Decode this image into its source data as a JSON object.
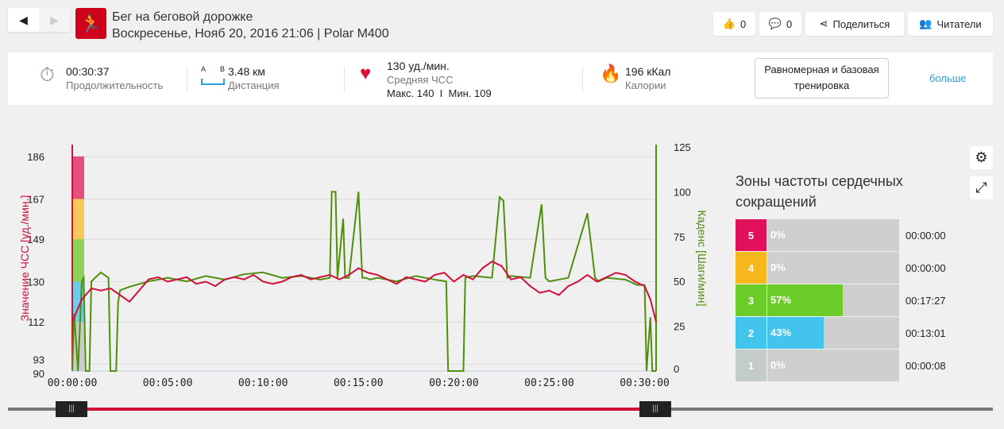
{
  "header": {
    "title": "Бег на беговой дорожке",
    "subtitle": "Воскресенье, Нояб 20, 2016 21:06 | Polar M400",
    "likes": "0",
    "comments": "0",
    "share": "Поделиться",
    "followers": "Читатели"
  },
  "summary": {
    "duration": "00:30:37",
    "duration_label": "Продолжительность",
    "dist_a": "A",
    "dist_b": "B",
    "distance": "3.48 км",
    "distance_label": "Дистанция",
    "hr": "130 уд./мин.",
    "hr_label": "Средняя ЧСС",
    "hr_minmax": "Макс. 140  I  Мин. 109",
    "calories": "196 кКал",
    "calories_label": "Калории",
    "training_type": "Равномерная и базовая тренировка",
    "more": "больше"
  },
  "zones": {
    "title": "Зоны частоты сердечных сокращений",
    "items": [
      {
        "zone": "5",
        "pct": "0%",
        "value": 0,
        "time": "00:00:00",
        "color": "#e0105a"
      },
      {
        "zone": "4",
        "pct": "0%",
        "value": 0,
        "time": "00:00:00",
        "color": "#f7b81e"
      },
      {
        "zone": "3",
        "pct": "57%",
        "value": 57,
        "time": "00:17:27",
        "color": "#6ccd2a"
      },
      {
        "zone": "2",
        "pct": "43%",
        "value": 43,
        "time": "00:13:01",
        "color": "#43c4ec"
      },
      {
        "zone": "1",
        "pct": "0%",
        "value": 0,
        "time": "00:00:08",
        "color": "#c3cbcb"
      }
    ]
  },
  "chart_data": {
    "type": "line",
    "ylabel": "Значение ЧСС [уд./мин.]",
    "y2label": "Каденс [Шаги/мин]",
    "yticks": [
      "186",
      "167",
      "149",
      "130",
      "112",
      "93",
      "90"
    ],
    "yvals": [
      186,
      167,
      149,
      130,
      112,
      93,
      90
    ],
    "ylim": [
      90,
      186
    ],
    "y2ticks": [
      "125",
      "100",
      "75",
      "50",
      "25",
      "0"
    ],
    "y2vals": [
      125,
      100,
      75,
      50,
      25,
      0
    ],
    "y2lim": [
      0,
      125
    ],
    "xticks": [
      "00:00:00",
      "00:05:00",
      "00:10:00",
      "00:15:00",
      "00:20:00",
      "00:25:00",
      "00:30:00"
    ],
    "xvals": [
      0,
      5,
      10,
      15,
      20,
      25,
      30
    ],
    "xlim": [
      0,
      30.6
    ],
    "hr_zones": [
      {
        "from": 90,
        "to": 112,
        "color": "#c8cccc"
      },
      {
        "from": 112,
        "to": 130,
        "color": "#6fcbe6"
      },
      {
        "from": 130,
        "to": 149,
        "color": "#8ed05c"
      },
      {
        "from": 149,
        "to": 167,
        "color": "#f7c85a"
      },
      {
        "from": 167,
        "to": 186,
        "color": "#e4507e"
      }
    ],
    "series": [
      {
        "name": "ЧСС",
        "color": "#d0103a",
        "x": [
          0,
          0.5,
          1,
          1.5,
          2,
          2.5,
          3,
          3.5,
          4,
          4.5,
          5,
          5.5,
          6,
          6.5,
          7,
          7.5,
          8,
          8.5,
          9,
          9.5,
          10,
          10.5,
          11,
          11.5,
          12,
          12.5,
          13,
          13.5,
          14,
          14.5,
          15,
          15.5,
          16,
          16.5,
          17,
          17.5,
          18,
          18.5,
          19,
          19.5,
          20,
          20.5,
          21,
          21.5,
          22,
          22.5,
          23,
          23.5,
          24,
          24.5,
          25,
          25.5,
          26,
          26.5,
          27,
          27.5,
          28,
          28.5,
          29,
          29.5,
          30,
          30.3,
          30.6
        ],
        "y": [
          112,
          122,
          127,
          126,
          127,
          124,
          121,
          126,
          131,
          132,
          130,
          131,
          132,
          129,
          130,
          128,
          131,
          132,
          131,
          133,
          130,
          129,
          130,
          132,
          133,
          131,
          132,
          133,
          131,
          133,
          136,
          134,
          133,
          131,
          129,
          132,
          131,
          130,
          133,
          134,
          130,
          133,
          131,
          136,
          139,
          137,
          131,
          132,
          128,
          125,
          126,
          124,
          128,
          130,
          133,
          130,
          132,
          134,
          133,
          130,
          128,
          122,
          112
        ]
      },
      {
        "name": "Каденс",
        "color": "#4f8f0a",
        "x": [
          0,
          0.1,
          0.3,
          0.5,
          0.6,
          0.7,
          0.9,
          1,
          1.5,
          1.9,
          2,
          2.1,
          2.3,
          2.4,
          2.5,
          3,
          4,
          5,
          6,
          7,
          8,
          9,
          10,
          11,
          12,
          13,
          13.5,
          13.6,
          13.8,
          13.9,
          14.2,
          14.3,
          14.5,
          15,
          15.2,
          15.4,
          15.6,
          16,
          17,
          18,
          19,
          19.6,
          19.7,
          20.5,
          20.6,
          21,
          22,
          22.4,
          22.6,
          22.8,
          23,
          24,
          24.6,
          24.8,
          25,
          26,
          27,
          27.4,
          27.6,
          28,
          29,
          29.6,
          30,
          30.1,
          30.3,
          30.4,
          30.6
        ],
        "y": [
          0,
          32,
          0,
          50,
          52,
          0,
          0,
          50,
          55,
          52,
          0,
          0,
          0,
          38,
          45,
          47,
          50,
          52,
          50,
          53,
          51,
          54,
          55,
          52,
          53,
          51,
          52,
          100,
          100,
          52,
          85,
          52,
          52,
          100,
          52,
          52,
          51,
          52,
          50,
          53,
          51,
          50,
          0,
          0,
          52,
          53,
          52,
          97,
          95,
          52,
          53,
          52,
          93,
          52,
          50,
          52,
          88,
          52,
          50,
          52,
          51,
          48,
          48,
          0,
          30,
          0,
          0
        ]
      }
    ]
  },
  "slider": {
    "start": "0",
    "end": "30.6"
  }
}
